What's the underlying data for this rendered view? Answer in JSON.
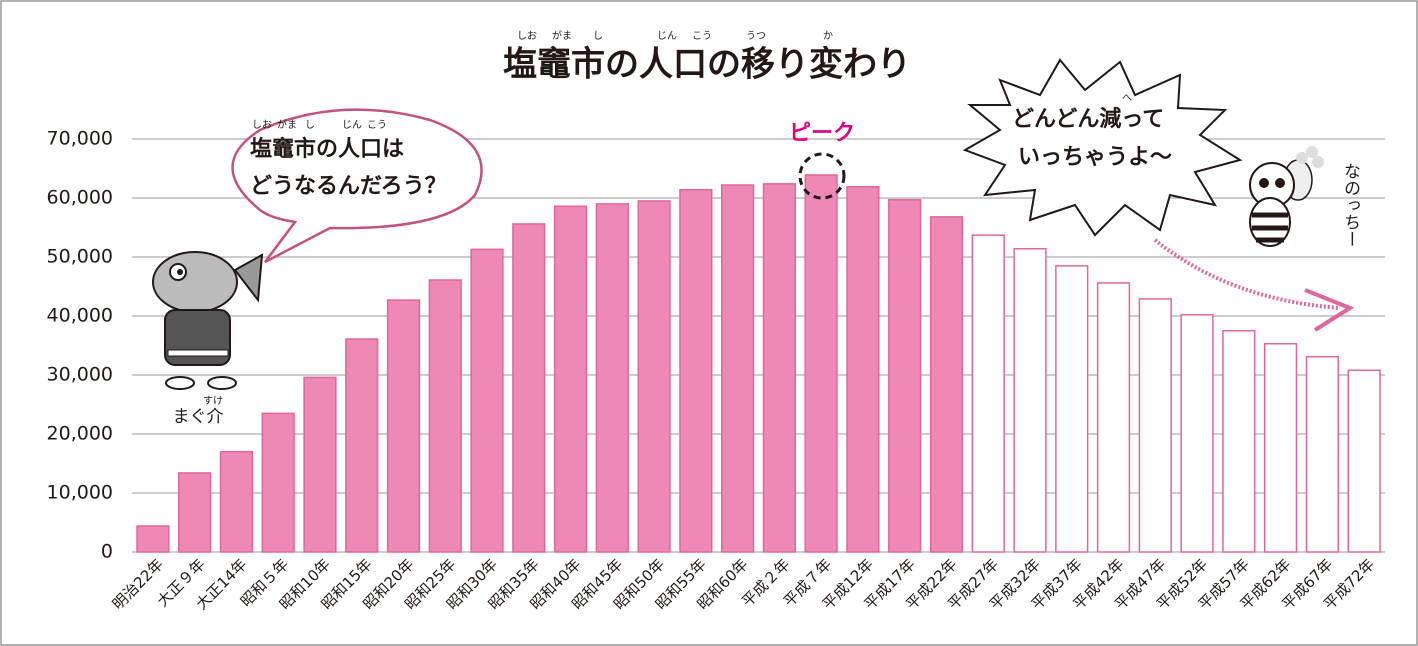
{
  "chart_data": {
    "type": "bar",
    "title": "塩竈市の人口の移り変わり",
    "title_ruby": [
      "しお",
      "がま",
      "し",
      "じん",
      "こう",
      "うつ",
      "か"
    ],
    "categories": [
      "明治22年",
      "大正９年",
      "大正14年",
      "昭和５年",
      "昭和10年",
      "昭和15年",
      "昭和20年",
      "昭和25年",
      "昭和30年",
      "昭和35年",
      "昭和40年",
      "昭和45年",
      "昭和50年",
      "昭和55年",
      "昭和60年",
      "平成２年",
      "平成７年",
      "平成12年",
      "平成17年",
      "平成22年",
      "平成27年",
      "平成32年",
      "平成37年",
      "平成42年",
      "平成47年",
      "平成52年",
      "平成57年",
      "平成62年",
      "平成67年",
      "平成72年"
    ],
    "values": [
      4400,
      13400,
      17000,
      23500,
      29600,
      36100,
      42700,
      46100,
      51300,
      55600,
      58600,
      59000,
      59500,
      61400,
      62200,
      62400,
      63900,
      61900,
      59700,
      56800,
      53700,
      51400,
      48500,
      45600,
      42900,
      40200,
      37500,
      35300,
      33100,
      30800
    ],
    "bar_fills": [
      "#ee88b4",
      "#ee88b4",
      "#ee88b4",
      "#ee88b4",
      "#ee88b4",
      "#ee88b4",
      "#ee88b4",
      "#ee88b4",
      "#ee88b4",
      "#ee88b4",
      "#ee88b4",
      "#ee88b4",
      "#ee88b4",
      "#ee88b4",
      "#ee88b4",
      "#ee88b4",
      "#ee88b4",
      "#ee88b4",
      "#ee88b4",
      "#ee88b4",
      "#ffffff",
      "#ffffff",
      "#ffffff",
      "#ffffff",
      "#ffffff",
      "#ffffff",
      "#ffffff",
      "#ffffff",
      "#ffffff",
      "#ffffff"
    ],
    "bar_stroke": "#e0679d",
    "ylim": [
      0,
      70000
    ],
    "yticks": [
      0,
      {
        "value": 10000,
        "label": "10,000"
      },
      {
        "value": 20000,
        "label": "20,000"
      },
      {
        "value": 30000,
        "label": "30,000"
      },
      {
        "value": 40000,
        "label": "40,000"
      },
      {
        "value": 50000,
        "label": "50,000"
      },
      {
        "value": 60000,
        "label": "60,000"
      },
      {
        "value": 70000,
        "label": "70,000"
      }
    ],
    "grid": true,
    "annotations": {
      "peak": "ピーク",
      "left_bubble": [
        "塩竈市の人口は",
        "どうなるんだろう？"
      ],
      "left_bubble_ruby": [
        "しお",
        "がま",
        "し",
        "じん",
        "こう"
      ],
      "right_bubble": [
        "どんどん減って",
        "いっちゃうよ〜"
      ],
      "right_bubble_ruby": "へ",
      "left_character": "まぐ介",
      "left_character_ruby": "すけ",
      "right_character": "なのっちー"
    }
  }
}
